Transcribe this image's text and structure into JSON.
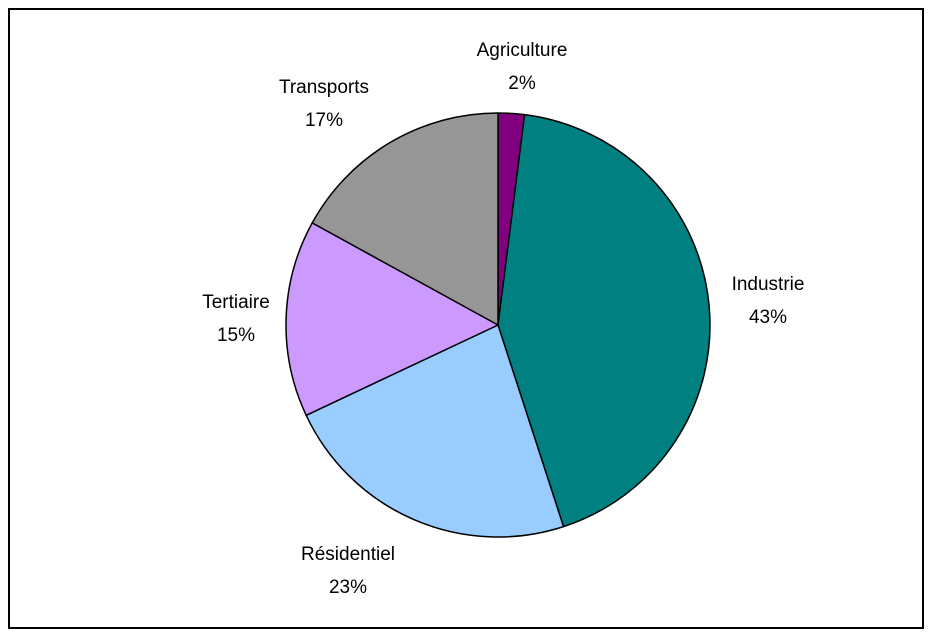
{
  "chart_data": {
    "type": "pie",
    "title": "",
    "start_angle_deg": 0,
    "direction": "clockwise",
    "slices": [
      {
        "name": "Agriculture",
        "value": 2,
        "label": "2%",
        "color": "#800080"
      },
      {
        "name": "Industrie",
        "value": 43,
        "label": "43%",
        "color": "#008080"
      },
      {
        "name": "Résidentiel",
        "value": 23,
        "label": "23%",
        "color": "#99CCFF"
      },
      {
        "name": "Tertiaire",
        "value": 15,
        "label": "15%",
        "color": "#CC99FF"
      },
      {
        "name": "Transports",
        "value": 17,
        "label": "17%",
        "color": "#969696"
      }
    ],
    "edge_color": "#000000"
  }
}
